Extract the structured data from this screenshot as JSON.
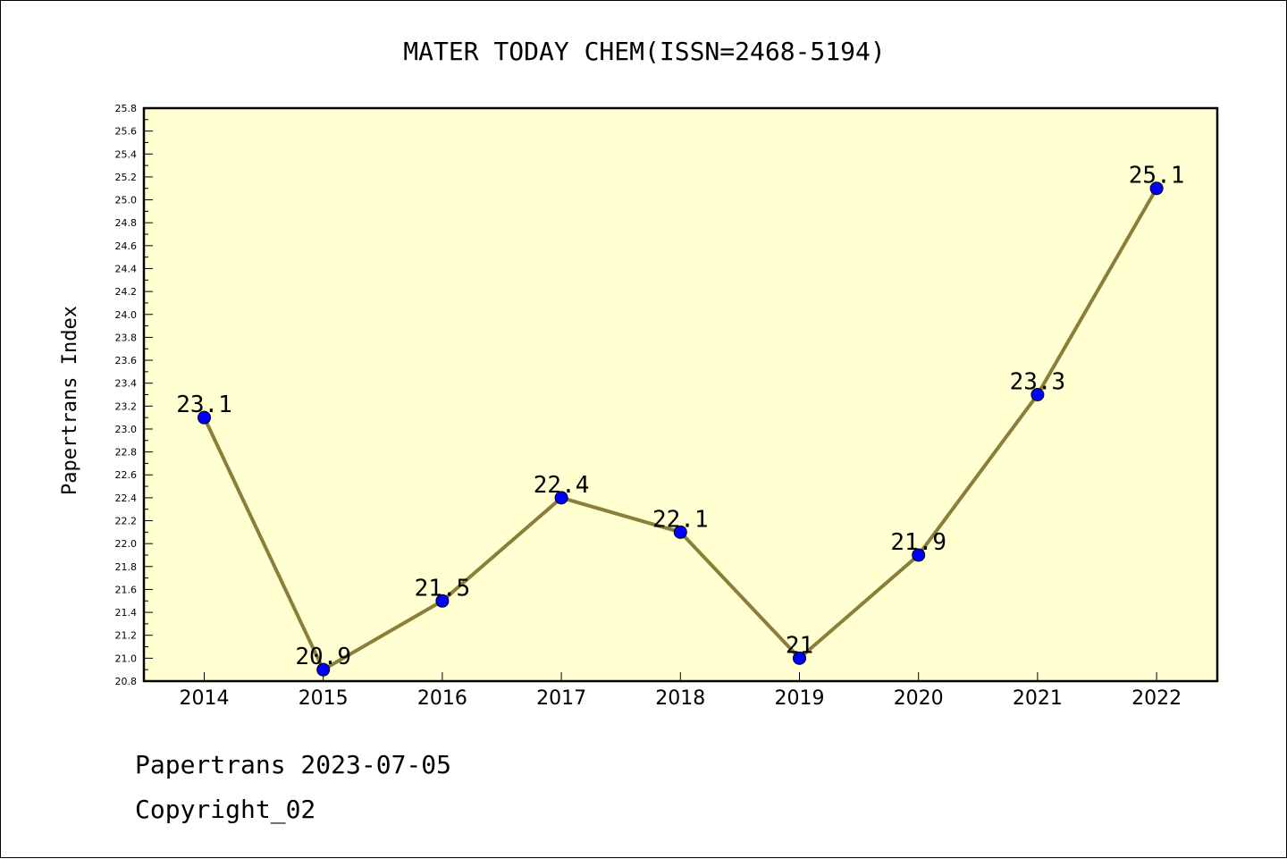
{
  "chart_data": {
    "type": "line",
    "title": "MATER TODAY CHEM(ISSN=2468-5194)",
    "xlabel": "",
    "ylabel": "Papertrans Index",
    "categories": [
      "2014",
      "2015",
      "2016",
      "2017",
      "2018",
      "2019",
      "2020",
      "2021",
      "2022"
    ],
    "series": [
      {
        "values": [
          23.1,
          20.9,
          21.5,
          22.4,
          22.1,
          21.0,
          21.9,
          23.3,
          25.1
        ]
      }
    ],
    "point_labels": [
      "23.1",
      "20.9",
      "21.5",
      "22.4",
      "22.1",
      "21",
      "21.9",
      "23.3",
      "25.1"
    ],
    "ylim": [
      20.8,
      25.8
    ],
    "yticks": [
      "20.8",
      "21.0",
      "21.2",
      "21.4",
      "21.6",
      "21.8",
      "22.0",
      "22.2",
      "22.4",
      "22.6",
      "22.8",
      "23.0",
      "23.2",
      "23.4",
      "23.6",
      "23.8",
      "24.0",
      "24.2",
      "24.4",
      "24.6",
      "24.8",
      "25.0",
      "25.2",
      "25.4",
      "25.6",
      "25.8"
    ],
    "grid": false,
    "colors": {
      "plot_background": "#ffffd2",
      "line": "#8b7d3a",
      "marker": "#0000ff"
    }
  },
  "footer": {
    "line1": "Papertrans 2023-07-05",
    "line2": "Copyright_02"
  }
}
